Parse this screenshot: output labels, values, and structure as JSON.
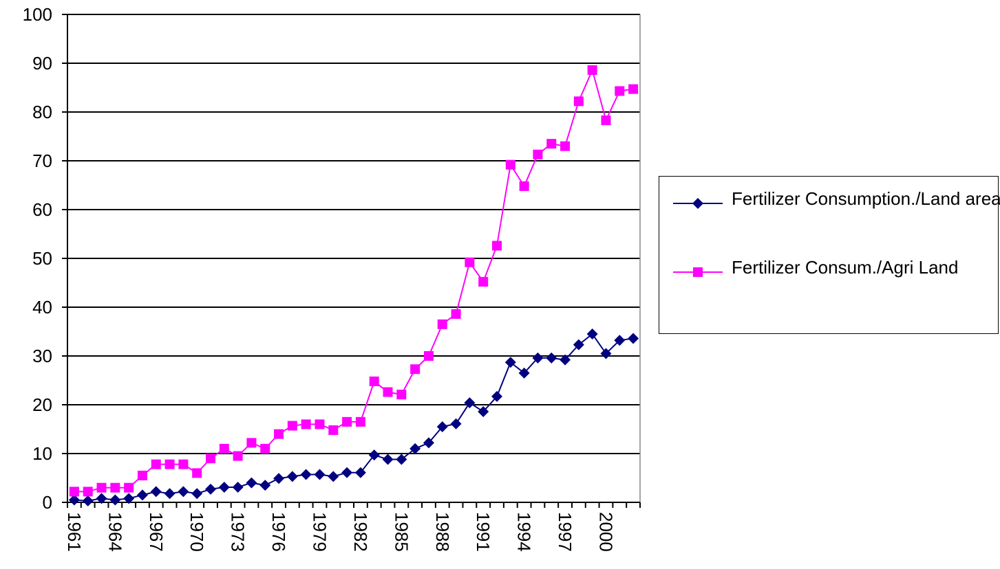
{
  "chart_data": {
    "type": "line",
    "categories": [
      "1961",
      null,
      null,
      "1964",
      null,
      null,
      "1967",
      null,
      null,
      "1970",
      null,
      null,
      "1973",
      null,
      null,
      "1976",
      null,
      null,
      "1979",
      null,
      null,
      "1982",
      null,
      null,
      "1985",
      null,
      null,
      "1988",
      null,
      null,
      "1991",
      null,
      null,
      "1994",
      null,
      null,
      "1997",
      null,
      null,
      "2000",
      null,
      null
    ],
    "series": [
      {
        "name": "Fertilizer Consumption./Land area",
        "color": "#000080",
        "marker": "diamond",
        "values": [
          0.5,
          0.3,
          0.8,
          0.5,
          0.8,
          1.5,
          2.2,
          1.8,
          2.2,
          1.8,
          2.7,
          3.1,
          3.1,
          4,
          3.5,
          4.9,
          5.3,
          5.7,
          5.7,
          5.3,
          6.1,
          6.1,
          9.7,
          8.8,
          8.8,
          11,
          12.2,
          15.5,
          16.1,
          20.4,
          18.6,
          21.7,
          28.7,
          26.5,
          29.6,
          29.6,
          29.2,
          32.3,
          34.5,
          30.5,
          33.2,
          33.6
        ]
      },
      {
        "name": "Fertilizer Consum./Agri Land",
        "color": "#FF00FF",
        "marker": "square",
        "values": [
          2.2,
          2.2,
          3,
          3,
          3,
          5.5,
          7.8,
          7.8,
          7.8,
          6,
          9,
          11,
          9.5,
          12.2,
          11,
          14,
          15.7,
          16,
          16,
          14.8,
          16.5,
          16.5,
          24.8,
          22.6,
          22.1,
          27.3,
          30,
          36.5,
          38.6,
          49.2,
          45.2,
          52.6,
          69.2,
          64.8,
          71.3,
          73.5,
          73,
          82.2,
          88.6,
          78.3,
          84.3,
          84.7
        ]
      }
    ],
    "ylim": [
      0,
      100
    ],
    "yticks": [
      0,
      10,
      20,
      30,
      40,
      50,
      60,
      70,
      80,
      90,
      100
    ],
    "grid": true,
    "legend": "right"
  }
}
